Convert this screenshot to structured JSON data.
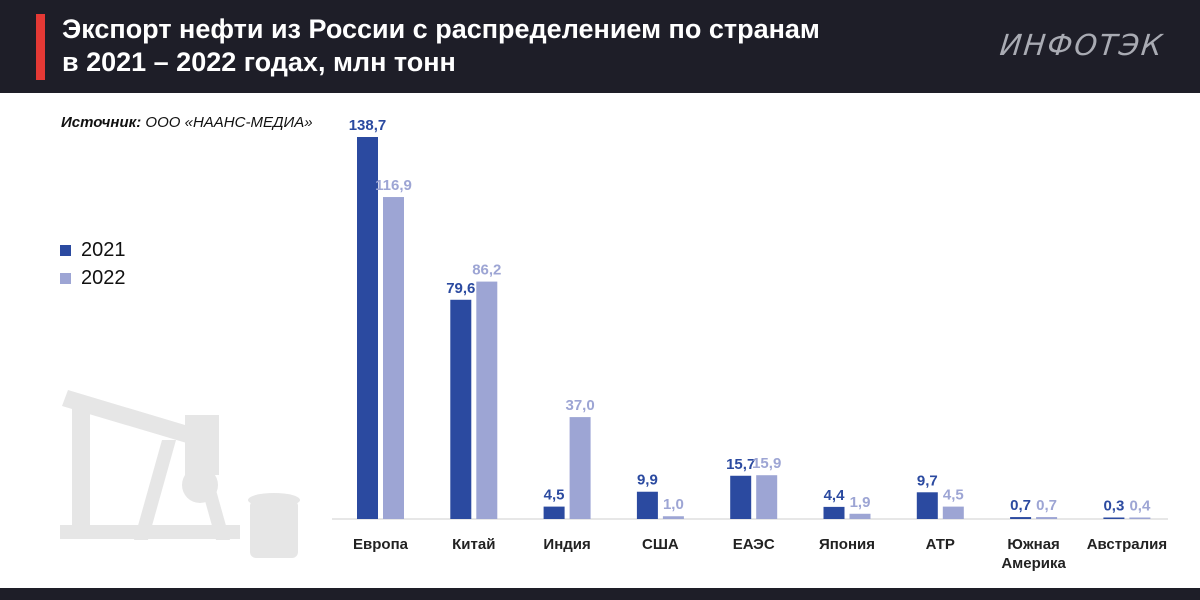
{
  "header": {
    "title_line1": "Экспорт нефти из России с распределением по странам",
    "title_line2": "в 2021 – 2022 годах, млн тонн",
    "logo": "ИНФОТЭК"
  },
  "source": {
    "label": "Источник:",
    "text": " ООО «НААНС-МЕДИА»"
  },
  "colors": {
    "header_bg": "#1e1e28",
    "accent_red": "#e53935",
    "series_2021": "#2b4aa0",
    "series_2022": "#9da5d4"
  },
  "chart_data": {
    "type": "bar",
    "categories": [
      "Европа",
      "Китай",
      "Индия",
      "США",
      "ЕАЭС",
      "Япония",
      "АТР",
      "Южная Америка",
      "Австралия"
    ],
    "category_labels": [
      [
        "Европа"
      ],
      [
        "Китай"
      ],
      [
        "Индия"
      ],
      [
        "США"
      ],
      [
        "ЕАЭС"
      ],
      [
        "Япония"
      ],
      [
        "АТР"
      ],
      [
        "Южная",
        "Америка"
      ],
      [
        "Австралия"
      ]
    ],
    "series": [
      {
        "name": "2021",
        "color": "#2b4aa0",
        "values": [
          138.7,
          79.6,
          4.5,
          9.9,
          15.7,
          4.4,
          9.7,
          0.7,
          0.3
        ],
        "labels": [
          "138,7",
          "79,6",
          "4,5",
          "9,9",
          "15,7",
          "4,4",
          "9,7",
          "0,7",
          "0,3"
        ]
      },
      {
        "name": "2022",
        "color": "#9da5d4",
        "values": [
          116.9,
          86.2,
          37.0,
          1.0,
          15.9,
          1.9,
          4.5,
          0.7,
          0.4
        ],
        "labels": [
          "116,9",
          "86,2",
          "37,0",
          "1,0",
          "15,9",
          "1,9",
          "4,5",
          "0,7",
          "0,4"
        ]
      }
    ],
    "title": "Экспорт нефти из России с распределением по странам в 2021 – 2022 годах, млн тонн",
    "xlabel": "",
    "ylabel": "",
    "ylim": [
      0,
      140
    ],
    "grid": false,
    "legend_position": "left"
  }
}
